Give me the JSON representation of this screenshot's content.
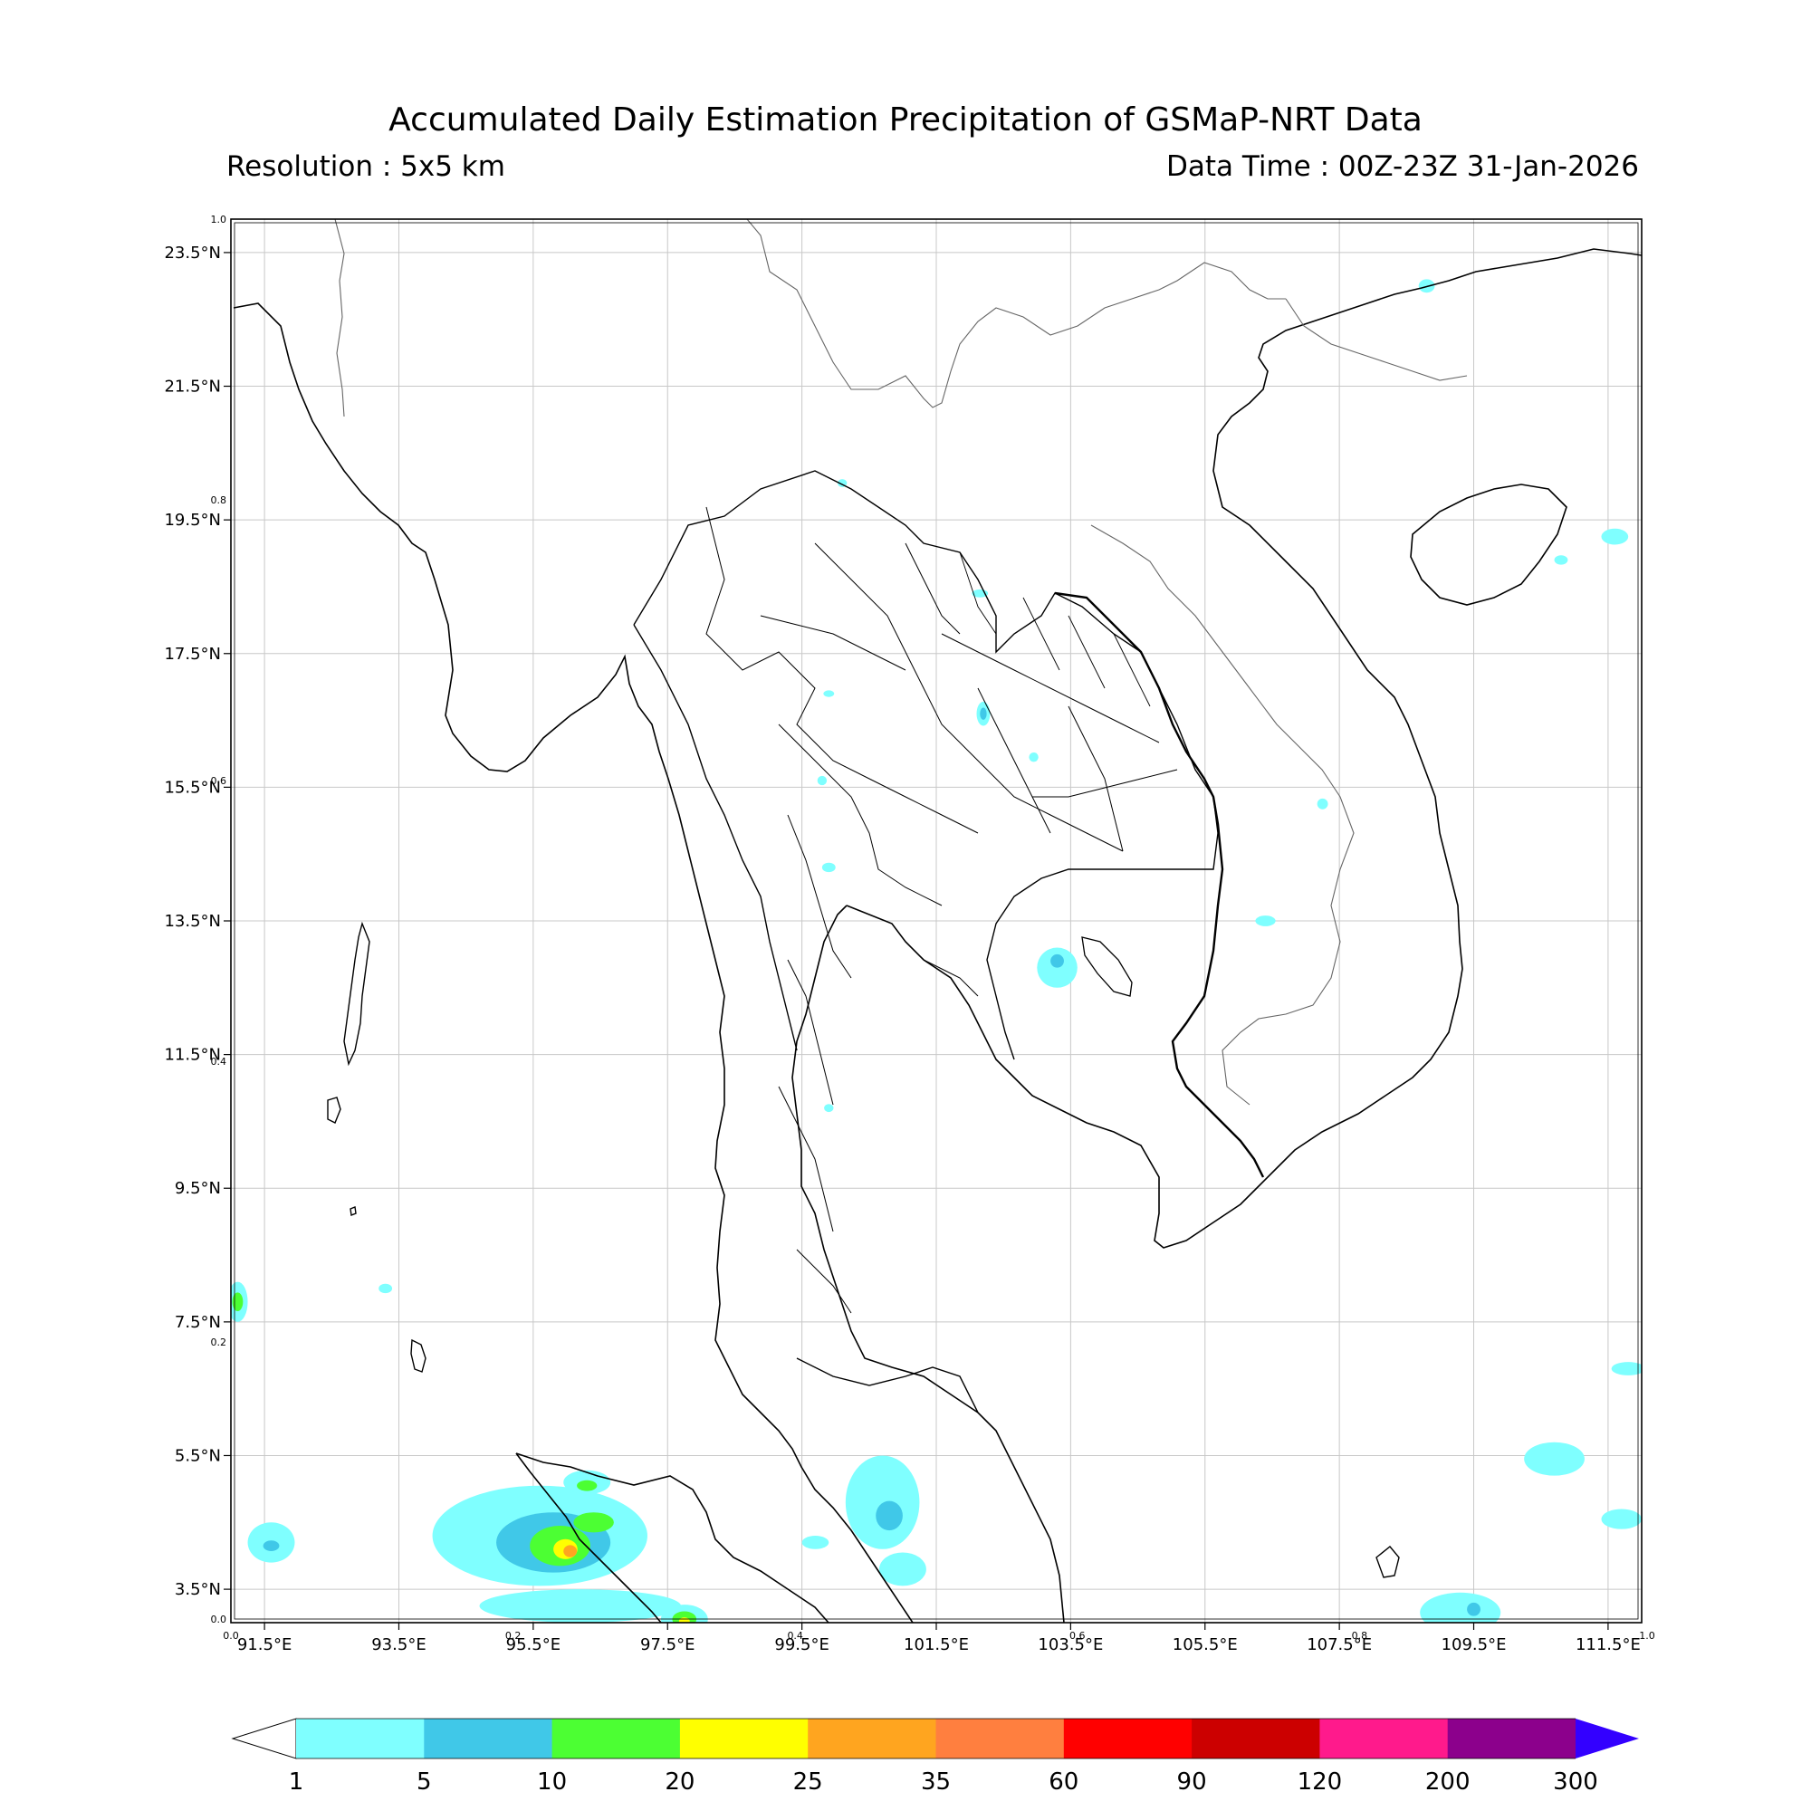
{
  "title": "Accumulated Daily Estimation Precipitation of GSMaP-NRT Data",
  "resolution_label": "Resolution : 5x5 km",
  "data_time_label": "Data Time : 00Z-23Z 31-Jan-2026",
  "map": {
    "lon_range": [
      91.0,
      112.0
    ],
    "lat_range": [
      3.0,
      24.0
    ],
    "lon_ticks": [
      91.5,
      93.5,
      95.5,
      97.5,
      99.5,
      101.5,
      103.5,
      105.5,
      107.5,
      109.5,
      111.5
    ],
    "lat_ticks": [
      3.5,
      5.5,
      7.5,
      9.5,
      11.5,
      13.5,
      15.5,
      17.5,
      19.5,
      21.5,
      23.5
    ],
    "lon_labels": [
      "91.5°E",
      "93.5°E",
      "95.5°E",
      "97.5°E",
      "99.5°E",
      "101.5°E",
      "103.5°E",
      "105.5°E",
      "107.5°E",
      "109.5°E",
      "111.5°E"
    ],
    "lat_labels": [
      "3.5°N",
      "5.5°N",
      "7.5°N",
      "9.5°N",
      "11.5°N",
      "13.5°N",
      "15.5°N",
      "17.5°N",
      "19.5°N",
      "21.5°N",
      "23.5°N"
    ],
    "frac_ticks": [
      "0.0",
      "0.2",
      "0.4",
      "0.6",
      "0.8",
      "1.0"
    ],
    "grid": true
  },
  "precip_areas": [
    {
      "lon": 95.6,
      "lat": 4.3,
      "rx": 1.6,
      "ry": 0.75,
      "level": 1
    },
    {
      "lon": 95.8,
      "lat": 4.2,
      "rx": 0.85,
      "ry": 0.45,
      "level": 5
    },
    {
      "lon": 95.9,
      "lat": 4.15,
      "rx": 0.45,
      "ry": 0.3,
      "level": 10
    },
    {
      "lon": 95.98,
      "lat": 4.1,
      "rx": 0.18,
      "ry": 0.15,
      "level": 20
    },
    {
      "lon": 96.05,
      "lat": 4.07,
      "rx": 0.1,
      "ry": 0.09,
      "level": 25
    },
    {
      "lon": 96.4,
      "lat": 4.5,
      "rx": 0.3,
      "ry": 0.15,
      "level": 10
    },
    {
      "lon": 96.3,
      "lat": 5.1,
      "rx": 0.35,
      "ry": 0.18,
      "level": 1
    },
    {
      "lon": 96.3,
      "lat": 5.05,
      "rx": 0.15,
      "ry": 0.08,
      "level": 10
    },
    {
      "lon": 96.2,
      "lat": 3.25,
      "rx": 1.5,
      "ry": 0.25,
      "level": 1
    },
    {
      "lon": 97.75,
      "lat": 3.05,
      "rx": 0.35,
      "ry": 0.22,
      "level": 1
    },
    {
      "lon": 97.75,
      "lat": 3.05,
      "rx": 0.18,
      "ry": 0.12,
      "level": 10
    },
    {
      "lon": 97.75,
      "lat": 3.02,
      "rx": 0.08,
      "ry": 0.06,
      "level": 20
    },
    {
      "lon": 100.7,
      "lat": 4.8,
      "rx": 0.55,
      "ry": 0.7,
      "level": 1
    },
    {
      "lon": 100.8,
      "lat": 4.6,
      "rx": 0.2,
      "ry": 0.22,
      "level": 5
    },
    {
      "lon": 101.0,
      "lat": 3.8,
      "rx": 0.35,
      "ry": 0.25,
      "level": 1
    },
    {
      "lon": 99.7,
      "lat": 4.2,
      "rx": 0.2,
      "ry": 0.1,
      "level": 1
    },
    {
      "lon": 91.6,
      "lat": 4.2,
      "rx": 0.35,
      "ry": 0.3,
      "level": 1
    },
    {
      "lon": 91.6,
      "lat": 4.15,
      "rx": 0.12,
      "ry": 0.08,
      "level": 5
    },
    {
      "lon": 91.1,
      "lat": 7.8,
      "rx": 0.15,
      "ry": 0.3,
      "level": 1
    },
    {
      "lon": 91.1,
      "lat": 7.8,
      "rx": 0.08,
      "ry": 0.14,
      "level": 10
    },
    {
      "lon": 109.3,
      "lat": 3.15,
      "rx": 0.6,
      "ry": 0.3,
      "level": 1
    },
    {
      "lon": 109.5,
      "lat": 3.2,
      "rx": 0.1,
      "ry": 0.1,
      "level": 5
    },
    {
      "lon": 110.7,
      "lat": 5.45,
      "rx": 0.45,
      "ry": 0.25,
      "level": 1
    },
    {
      "lon": 111.7,
      "lat": 4.55,
      "rx": 0.3,
      "ry": 0.15,
      "level": 1
    },
    {
      "lon": 111.8,
      "lat": 6.8,
      "rx": 0.25,
      "ry": 0.1,
      "level": 1
    },
    {
      "lon": 111.6,
      "lat": 19.25,
      "rx": 0.2,
      "ry": 0.12,
      "level": 1
    },
    {
      "lon": 110.8,
      "lat": 18.9,
      "rx": 0.1,
      "ry": 0.07,
      "level": 1
    },
    {
      "lon": 108.8,
      "lat": 23.0,
      "rx": 0.12,
      "ry": 0.1,
      "level": 1
    },
    {
      "lon": 103.3,
      "lat": 12.8,
      "rx": 0.3,
      "ry": 0.3,
      "level": 1
    },
    {
      "lon": 103.3,
      "lat": 12.9,
      "rx": 0.1,
      "ry": 0.1,
      "level": 5
    },
    {
      "lon": 102.2,
      "lat": 16.6,
      "rx": 0.1,
      "ry": 0.18,
      "level": 1
    },
    {
      "lon": 102.2,
      "lat": 16.6,
      "rx": 0.05,
      "ry": 0.09,
      "level": 5
    },
    {
      "lon": 102.15,
      "lat": 18.4,
      "rx": 0.12,
      "ry": 0.06,
      "level": 1
    },
    {
      "lon": 106.4,
      "lat": 13.5,
      "rx": 0.15,
      "ry": 0.08,
      "level": 1
    },
    {
      "lon": 107.25,
      "lat": 15.25,
      "rx": 0.08,
      "ry": 0.08,
      "level": 1
    },
    {
      "lon": 99.9,
      "lat": 14.3,
      "rx": 0.1,
      "ry": 0.07,
      "level": 1
    },
    {
      "lon": 99.8,
      "lat": 15.6,
      "rx": 0.07,
      "ry": 0.07,
      "level": 1
    },
    {
      "lon": 99.9,
      "lat": 16.9,
      "rx": 0.08,
      "ry": 0.05,
      "level": 1
    },
    {
      "lon": 102.95,
      "lat": 15.95,
      "rx": 0.07,
      "ry": 0.07,
      "level": 1
    },
    {
      "lon": 99.9,
      "lat": 10.7,
      "rx": 0.07,
      "ry": 0.06,
      "level": 1
    },
    {
      "lon": 93.3,
      "lat": 8.0,
      "rx": 0.1,
      "ry": 0.07,
      "level": 1
    },
    {
      "lon": 100.1,
      "lat": 20.05,
      "rx": 0.07,
      "ry": 0.06,
      "level": 1
    }
  ],
  "colorbar": {
    "labels": [
      "1",
      "5",
      "10",
      "20",
      "25",
      "35",
      "60",
      "90",
      "120",
      "200",
      "300"
    ],
    "colors": [
      "#7fffff",
      "#40c8e8",
      "#4cff33",
      "#ffff00",
      "#ffa51f",
      "#ff7f3f",
      "#ff0000",
      "#cc0000",
      "#ff1a8c",
      "#8c008c"
    ],
    "under_color": "#ffffff",
    "over_color": "#3300ff",
    "levels": {
      "1": "#7fffff",
      "5": "#40c8e8",
      "10": "#4cff33",
      "20": "#ffff00",
      "25": "#ffa51f"
    }
  }
}
